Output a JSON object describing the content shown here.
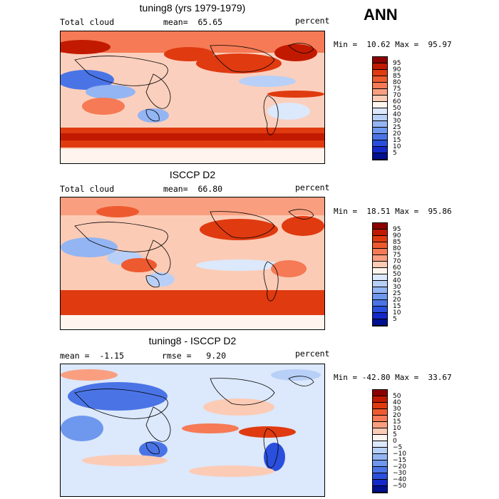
{
  "season": "ANN",
  "panels": [
    {
      "title": "tuning8 (yrs 1979-1979)",
      "left_label": "Total cloud",
      "mid_label": "mean=  65.65",
      "units": "percent",
      "minmax": "Min =  10.62 Max =  95.97",
      "levels": [
        "95",
        "90",
        "85",
        "80",
        "75",
        "70",
        "60",
        "50",
        "40",
        "30",
        "25",
        "20",
        "15",
        "10",
        "5"
      ],
      "colors": [
        "#8b0000",
        "#c21a00",
        "#e03a10",
        "#ee5a30",
        "#f57a55",
        "#f99f80",
        "#fccbb5",
        "#fff5ee",
        "#dce8fb",
        "#b8d0f8",
        "#93b5f3",
        "#6e97ee",
        "#4a74e6",
        "#2a4fdc",
        "#1329c9",
        "#001090"
      ]
    },
    {
      "title": "ISCCP D2",
      "left_label": "Total cloud",
      "mid_label": "mean=  66.80",
      "units": "percent",
      "minmax": "Min =  18.51 Max =  95.86",
      "levels": [
        "95",
        "90",
        "85",
        "80",
        "75",
        "70",
        "60",
        "50",
        "40",
        "30",
        "25",
        "20",
        "15",
        "10",
        "5"
      ],
      "colors": [
        "#8b0000",
        "#c21a00",
        "#e03a10",
        "#ee5a30",
        "#f57a55",
        "#f99f80",
        "#fccbb5",
        "#fff5ee",
        "#dce8fb",
        "#b8d0f8",
        "#93b5f3",
        "#6e97ee",
        "#4a74e6",
        "#2a4fdc",
        "#1329c9",
        "#001090"
      ]
    },
    {
      "title": "tuning8 - ISCCP D2",
      "left_label": "mean =  -1.15",
      "mid_label": "rmse =   9.20",
      "units": "percent",
      "minmax": "Min = -42.80 Max =  33.67",
      "levels": [
        "50",
        "40",
        "30",
        "20",
        "15",
        "10",
        "5",
        "0",
        "−5",
        "−10",
        "−15",
        "−20",
        "−30",
        "−40",
        "−50"
      ],
      "colors": [
        "#8b0000",
        "#c21a00",
        "#e03a10",
        "#ee5a30",
        "#f57a55",
        "#f99f80",
        "#fccbb5",
        "#fff5ee",
        "#dce8fb",
        "#b8d0f8",
        "#93b5f3",
        "#6e97ee",
        "#4a74e6",
        "#2a4fdc",
        "#1329c9",
        "#001090"
      ]
    }
  ]
}
